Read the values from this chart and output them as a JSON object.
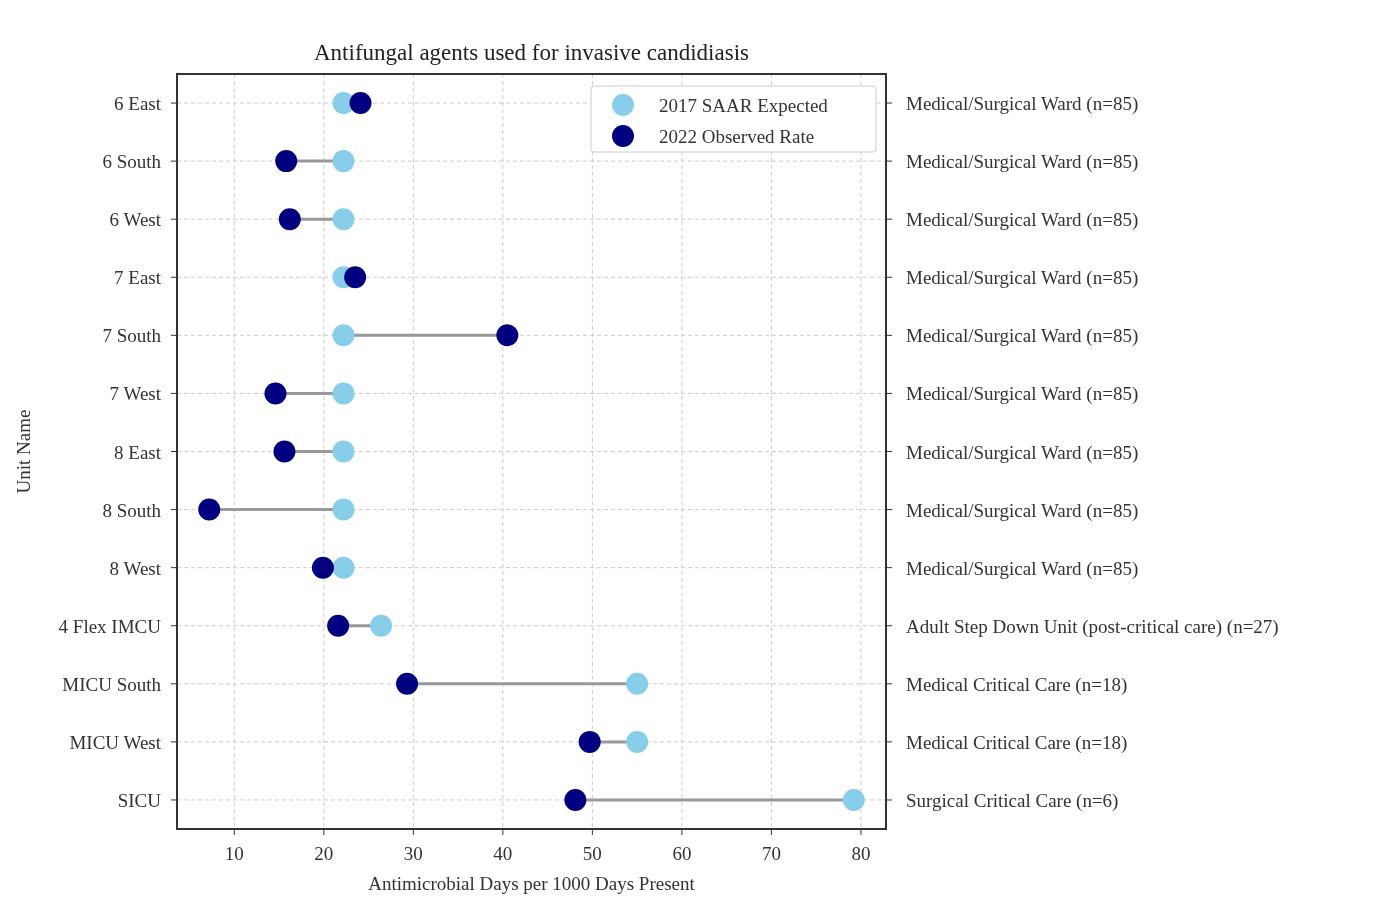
{
  "chart_data": {
    "type": "scatter",
    "orientation": "horizontal",
    "title": "Antifungal agents used for invasive candidiasis",
    "xlabel": "Antimicrobial Days per 1000 Days Present",
    "ylabel": "Unit Name",
    "categories": [
      "6 East",
      "6 South",
      "6 West",
      "7 East",
      "7 South",
      "7 West",
      "8 East",
      "8 South",
      "8 West",
      "4 Flex IMCU",
      "MICU South",
      "MICU West",
      "SICU"
    ],
    "y2_categories": [
      "Medical/Surgical Ward (n=85)",
      "Medical/Surgical Ward (n=85)",
      "Medical/Surgical Ward (n=85)",
      "Medical/Surgical Ward (n=85)",
      "Medical/Surgical Ward (n=85)",
      "Medical/Surgical Ward (n=85)",
      "Medical/Surgical Ward (n=85)",
      "Medical/Surgical Ward (n=85)",
      "Medical/Surgical Ward (n=85)",
      "Adult Step Down Unit (post-critical care) (n=27)",
      "Medical Critical Care (n=18)",
      "Medical Critical Care (n=18)",
      "Surgical Critical Care (n=6)"
    ],
    "series": [
      {
        "name": "2017 SAAR Expected",
        "color": "#87ceeb",
        "values": [
          22.2,
          22.2,
          22.2,
          22.2,
          22.2,
          22.2,
          22.2,
          22.2,
          22.2,
          26.4,
          55.0,
          55.0,
          79.2
        ]
      },
      {
        "name": "2022 Observed Rate",
        "color": "#000080",
        "values": [
          24.1,
          15.8,
          16.2,
          23.5,
          40.5,
          14.6,
          15.6,
          7.2,
          19.9,
          21.6,
          29.3,
          49.7,
          48.1
        ]
      }
    ],
    "xlim": [
      3.6,
      82.8
    ],
    "xticks": [
      10,
      20,
      30,
      40,
      50,
      60,
      70,
      80
    ],
    "grid": true,
    "legend": "top right",
    "marker": "circle"
  }
}
